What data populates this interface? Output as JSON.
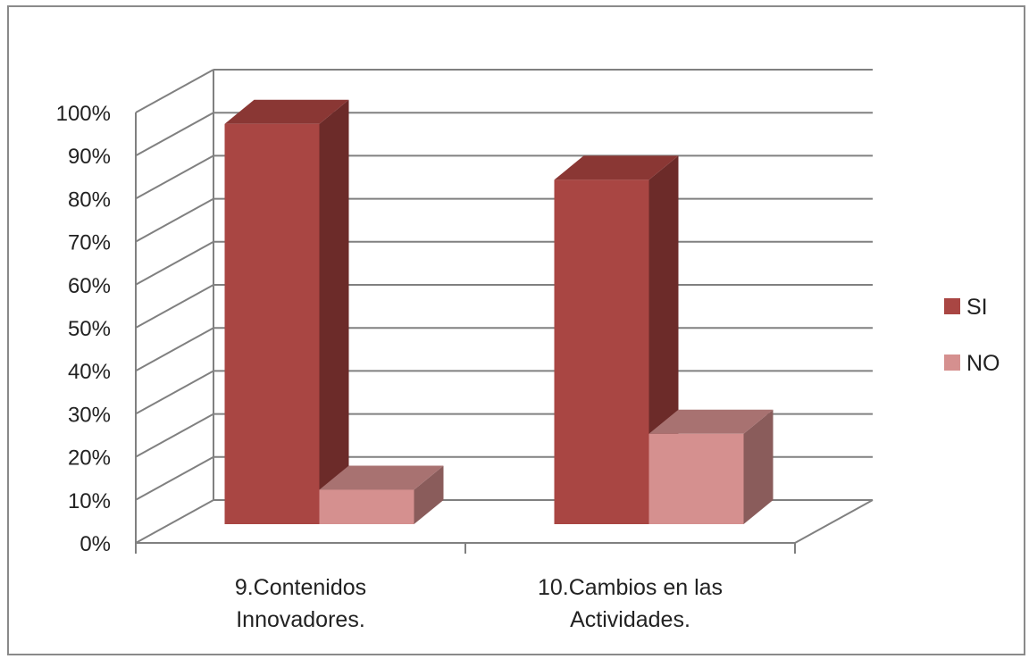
{
  "chart_data": {
    "type": "bar",
    "style": "3d-clustered-column",
    "categories": [
      [
        "9.Contenidos",
        "Innovadores."
      ],
      [
        "10.Cambios en las",
        "Actividades."
      ]
    ],
    "series": [
      {
        "name": "SI",
        "values": [
          0.93,
          0.8
        ],
        "color": "#a94643",
        "side_color": "#6c2b29",
        "top_color": "#8a3734"
      },
      {
        "name": "NO",
        "values": [
          0.08,
          0.21
        ],
        "color": "#d5908f",
        "side_color": "#8a5c5b",
        "top_color": "#a87271"
      }
    ],
    "y_ticks": [
      "0%",
      "10%",
      "20%",
      "30%",
      "40%",
      "50%",
      "60%",
      "70%",
      "80%",
      "90%",
      "100%"
    ],
    "ylim": [
      0,
      1
    ],
    "grid": true,
    "legend_position": "right",
    "colors": {
      "grid": "#808080",
      "axis": "#808080",
      "frame": "#8a8a8a"
    }
  }
}
